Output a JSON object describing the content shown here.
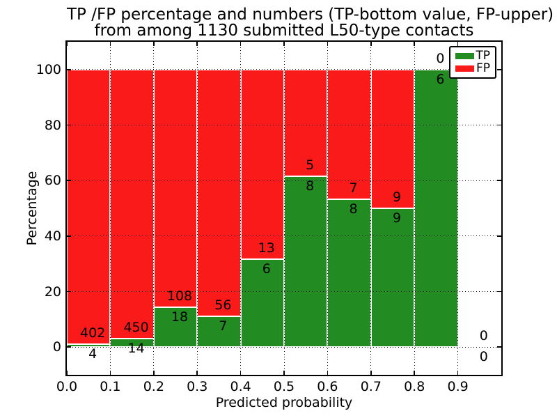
{
  "title": {
    "line1": "TP /FP percentage and numbers (TP-bottom value, FP-upper)",
    "line2": "from among 1130 submitted L50-type contacts"
  },
  "total_submitted_contacts": 1130,
  "chart_data": {
    "type": "bar",
    "stacked": true,
    "title": "TP /FP percentage and numbers (TP-bottom value, FP-upper) from among 1130 submitted L50-type contacts",
    "xlabel": "Predicted probability",
    "ylabel": "Percentage",
    "xlim": [
      0.0,
      1.0
    ],
    "ylim": [
      -10,
      110
    ],
    "xticks": [
      0.0,
      0.1,
      0.2,
      0.3,
      0.4,
      0.5,
      0.6,
      0.7,
      0.8,
      0.9
    ],
    "yticks": [
      0,
      20,
      40,
      60,
      80,
      100
    ],
    "grid": true,
    "grid_style": "dotted",
    "legend_position": "upper right",
    "series": [
      {
        "name": "TP",
        "color": "#228b22"
      },
      {
        "name": "FP",
        "color": "#fa1a1a"
      }
    ],
    "bins": [
      {
        "x_range": [
          0.0,
          0.1
        ],
        "tp_count": 4,
        "fp_count": 402,
        "tp_percent": 0.99,
        "fp_percent": 99.01
      },
      {
        "x_range": [
          0.1,
          0.2
        ],
        "tp_count": 14,
        "fp_count": 450,
        "tp_percent": 3.02,
        "fp_percent": 96.98
      },
      {
        "x_range": [
          0.2,
          0.3
        ],
        "tp_count": 18,
        "fp_count": 108,
        "tp_percent": 14.29,
        "fp_percent": 85.71
      },
      {
        "x_range": [
          0.3,
          0.4
        ],
        "tp_count": 7,
        "fp_count": 56,
        "tp_percent": 11.11,
        "fp_percent": 88.89
      },
      {
        "x_range": [
          0.4,
          0.5
        ],
        "tp_count": 6,
        "fp_count": 13,
        "tp_percent": 31.58,
        "fp_percent": 68.42
      },
      {
        "x_range": [
          0.5,
          0.6
        ],
        "tp_count": 8,
        "fp_count": 5,
        "tp_percent": 61.54,
        "fp_percent": 38.46
      },
      {
        "x_range": [
          0.6,
          0.7
        ],
        "tp_count": 8,
        "fp_count": 7,
        "tp_percent": 53.33,
        "fp_percent": 46.67
      },
      {
        "x_range": [
          0.7,
          0.8
        ],
        "tp_count": 9,
        "fp_count": 9,
        "tp_percent": 50.0,
        "fp_percent": 50.0
      },
      {
        "x_range": [
          0.8,
          0.9
        ],
        "tp_count": 6,
        "fp_count": 0,
        "tp_percent": 100.0,
        "fp_percent": 0.0
      },
      {
        "x_range": [
          0.9,
          1.0
        ],
        "tp_count": 0,
        "fp_count": 0,
        "tp_percent": 0.0,
        "fp_percent": 0.0
      }
    ]
  },
  "colors": {
    "tp": "#228b22",
    "fp": "#fa1a1a",
    "background": "#ffffff",
    "frame": "#000000",
    "grid": "#000000",
    "bar_edge": "#ffffff"
  }
}
